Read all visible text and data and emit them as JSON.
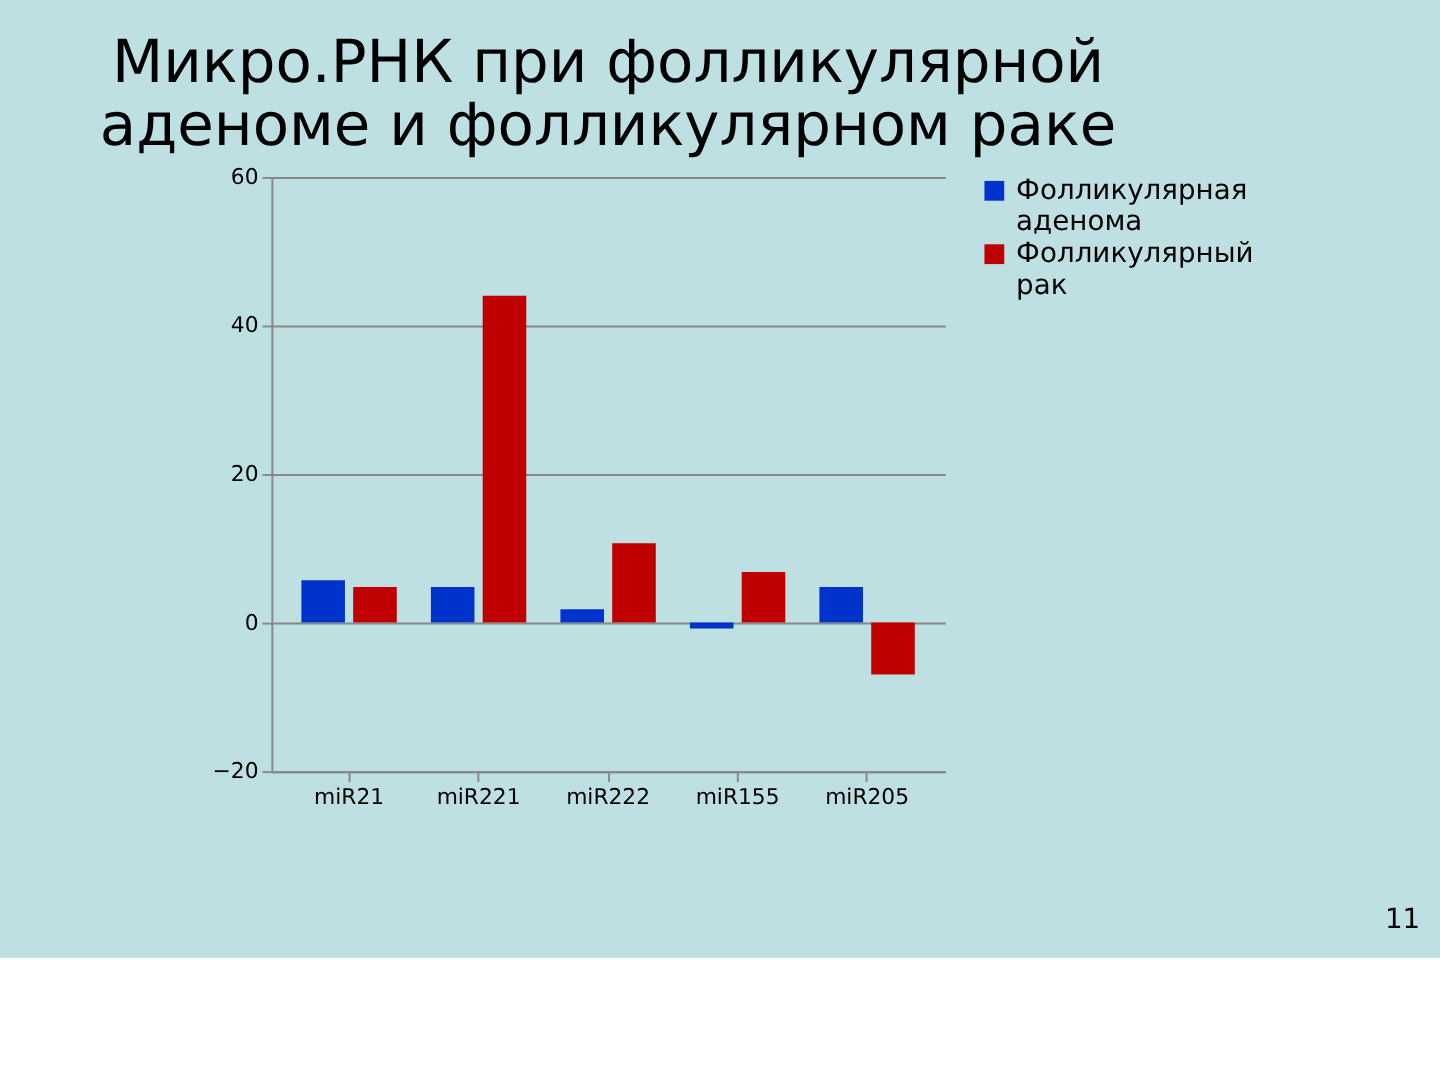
{
  "chart_data": {
    "type": "bar",
    "title": [
      "Микро.РНК при фолликулярной",
      "аденоме и фолликулярном раке"
    ],
    "categories": [
      "miR21",
      "miR221",
      "miR222",
      "miR155",
      "miR205"
    ],
    "series": [
      {
        "name": "Фолликулярная аденома",
        "color": "#0033cc",
        "values": [
          5.7,
          4.8,
          1.8,
          -0.8,
          4.8
        ]
      },
      {
        "name": "Фолликулярный рак",
        "color": "#c00000",
        "values": [
          4.8,
          44,
          10.7,
          6.8,
          -7
        ]
      }
    ],
    "ylim": [
      -20,
      60
    ],
    "yticks": [
      -20,
      0,
      20,
      40,
      60
    ],
    "grid": "y",
    "legend": "right",
    "annotations": [
      "11"
    ]
  }
}
